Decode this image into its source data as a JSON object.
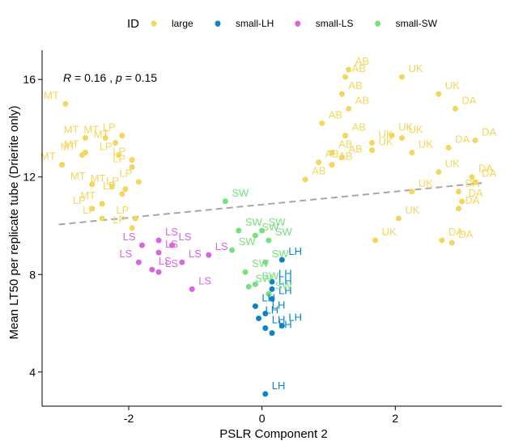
{
  "chart_data": {
    "type": "scatter",
    "xlabel": "PSLR Component 2",
    "ylabel": "Mean LT50 per replicate tube (Drierite only)",
    "xlim": [
      -3.3,
      3.6
    ],
    "ylim": [
      2.6,
      17.2
    ],
    "xticks": [
      -2,
      0,
      2
    ],
    "yticks": [
      4,
      8,
      12,
      16
    ],
    "grid": false,
    "legend_title": "ID",
    "legend_position": "top",
    "stat_annotation": {
      "R": "0.16",
      "p": "0.15"
    },
    "trend_line": {
      "style": "dashed",
      "color": "#a6a6a6",
      "x": [
        -3.05,
        3.3
      ],
      "y": [
        10.05,
        11.75
      ]
    },
    "series": [
      {
        "name": "large",
        "color": "#f3d65b",
        "points": [
          {
            "x": -2.95,
            "y": 15.0,
            "label": "MT"
          },
          {
            "x": -2.65,
            "y": 13.6,
            "label": "MT"
          },
          {
            "x": -2.35,
            "y": 13.6,
            "label": "MT"
          },
          {
            "x": -2.65,
            "y": 13.0,
            "label": "MT"
          },
          {
            "x": -2.2,
            "y": 13.4,
            "label": "MT"
          },
          {
            "x": -2.7,
            "y": 12.9,
            "label": "MT"
          },
          {
            "x": -3.0,
            "y": 12.5,
            "label": "MT"
          },
          {
            "x": -2.55,
            "y": 11.7,
            "label": "MT"
          },
          {
            "x": -2.25,
            "y": 11.6,
            "label": "MT"
          },
          {
            "x": -2.4,
            "y": 10.9,
            "label": "MT"
          },
          {
            "x": -2.1,
            "y": 13.7,
            "label": "LP"
          },
          {
            "x": -2.15,
            "y": 12.9,
            "label": "LP"
          },
          {
            "x": -1.95,
            "y": 12.7,
            "label": "LP"
          },
          {
            "x": -1.95,
            "y": 12.4,
            "label": "LP"
          },
          {
            "x": -1.85,
            "y": 11.8,
            "label": "LP"
          },
          {
            "x": -2.05,
            "y": 11.5,
            "label": "LP"
          },
          {
            "x": -2.1,
            "y": 11.3,
            "label": "LP"
          },
          {
            "x": -2.55,
            "y": 10.7,
            "label": "LP"
          },
          {
            "x": -2.4,
            "y": 10.3,
            "label": "LP"
          },
          {
            "x": -1.95,
            "y": 9.9,
            "label": "LP"
          },
          {
            "x": -1.9,
            "y": 10.3,
            "label": "LP"
          },
          {
            "x": 1.3,
            "y": 16.4,
            "label": "AB"
          },
          {
            "x": 1.25,
            "y": 16.1,
            "label": "AB"
          },
          {
            "x": 1.2,
            "y": 15.4,
            "label": "AB"
          },
          {
            "x": 1.3,
            "y": 14.8,
            "label": "AB"
          },
          {
            "x": 0.9,
            "y": 14.2,
            "label": "AB"
          },
          {
            "x": 1.25,
            "y": 13.7,
            "label": "AB"
          },
          {
            "x": 1.05,
            "y": 13.0,
            "label": "AB"
          },
          {
            "x": 1.2,
            "y": 12.8,
            "label": "AB"
          },
          {
            "x": 0.85,
            "y": 12.6,
            "label": "AB"
          },
          {
            "x": 1.05,
            "y": 12.5,
            "label": "AB"
          },
          {
            "x": 0.65,
            "y": 11.9,
            "label": "AB"
          },
          {
            "x": 2.1,
            "y": 16.1,
            "label": "UK"
          },
          {
            "x": 2.65,
            "y": 15.4,
            "label": "UK"
          },
          {
            "x": 1.95,
            "y": 13.7,
            "label": "UK"
          },
          {
            "x": 2.1,
            "y": 13.6,
            "label": "UK"
          },
          {
            "x": 1.65,
            "y": 13.4,
            "label": "UK"
          },
          {
            "x": 2.25,
            "y": 13.0,
            "label": "UK"
          },
          {
            "x": 1.65,
            "y": 13.1,
            "label": "UK"
          },
          {
            "x": 2.65,
            "y": 12.2,
            "label": "UK"
          },
          {
            "x": 2.25,
            "y": 11.4,
            "label": "UK"
          },
          {
            "x": 2.05,
            "y": 10.3,
            "label": "UK"
          },
          {
            "x": 1.7,
            "y": 9.4,
            "label": "UK"
          },
          {
            "x": 2.9,
            "y": 14.8,
            "label": "DA"
          },
          {
            "x": 2.8,
            "y": 13.2,
            "label": "DA"
          },
          {
            "x": 3.15,
            "y": 12.0,
            "label": "DA"
          },
          {
            "x": 3.2,
            "y": 13.5,
            "label": "DA"
          },
          {
            "x": 2.95,
            "y": 11.4,
            "label": "DA"
          },
          {
            "x": 3.2,
            "y": 11.8,
            "label": "DA"
          },
          {
            "x": 3.0,
            "y": 11.0,
            "label": "DA"
          },
          {
            "x": 2.95,
            "y": 10.7,
            "label": "DA"
          },
          {
            "x": 2.7,
            "y": 9.4,
            "label": "DA"
          },
          {
            "x": 2.85,
            "y": 9.3,
            "label": "DA"
          }
        ]
      },
      {
        "name": "small-LH",
        "color": "#0a84c6",
        "points": [
          {
            "x": 0.3,
            "y": 8.6,
            "label": "LH"
          },
          {
            "x": 0.15,
            "y": 7.7,
            "label": "LH"
          },
          {
            "x": 0.15,
            "y": 7.4,
            "label": "LH"
          },
          {
            "x": 0.15,
            "y": 7.0,
            "label": "LH"
          },
          {
            "x": -0.1,
            "y": 6.7,
            "label": "LH"
          },
          {
            "x": 0.05,
            "y": 6.4,
            "label": "LH"
          },
          {
            "x": -0.05,
            "y": 6.2,
            "label": "LH"
          },
          {
            "x": 0.3,
            "y": 5.9,
            "label": "LH"
          },
          {
            "x": 0.05,
            "y": 5.8,
            "label": "LH"
          },
          {
            "x": 0.15,
            "y": 5.6,
            "label": "LH"
          },
          {
            "x": 0.05,
            "y": 3.1,
            "label": "LH"
          }
        ]
      },
      {
        "name": "small-LS",
        "color": "#d766e0",
        "points": [
          {
            "x": -1.55,
            "y": 9.4,
            "label": "LS"
          },
          {
            "x": -1.8,
            "y": 9.2,
            "label": "LS"
          },
          {
            "x": -1.35,
            "y": 9.2,
            "label": "LS"
          },
          {
            "x": -1.55,
            "y": 8.9,
            "label": "LS"
          },
          {
            "x": -0.8,
            "y": 8.8,
            "label": "LS"
          },
          {
            "x": -1.85,
            "y": 8.5,
            "label": "LS"
          },
          {
            "x": -1.2,
            "y": 8.5,
            "label": "LS"
          },
          {
            "x": -1.65,
            "y": 8.2,
            "label": "LS"
          },
          {
            "x": -1.55,
            "y": 8.1,
            "label": "LS"
          },
          {
            "x": -1.05,
            "y": 7.4,
            "label": "LS"
          }
        ]
      },
      {
        "name": "small-SW",
        "color": "#77e07d",
        "points": [
          {
            "x": -0.55,
            "y": 11.0,
            "label": "SW"
          },
          {
            "x": -0.35,
            "y": 9.8,
            "label": "SW"
          },
          {
            "x": -0.1,
            "y": 9.6,
            "label": "SW"
          },
          {
            "x": 0.0,
            "y": 9.8,
            "label": "SW"
          },
          {
            "x": 0.1,
            "y": 9.4,
            "label": "SW"
          },
          {
            "x": -0.45,
            "y": 9.0,
            "label": "SW"
          },
          {
            "x": 0.05,
            "y": 8.5,
            "label": "SW"
          },
          {
            "x": -0.25,
            "y": 8.1,
            "label": "SW"
          },
          {
            "x": -0.1,
            "y": 7.6,
            "label": "SW"
          },
          {
            "x": -0.2,
            "y": 7.5,
            "label": "SW"
          },
          {
            "x": 0.1,
            "y": 7.2,
            "label": "SW"
          }
        ]
      }
    ]
  }
}
